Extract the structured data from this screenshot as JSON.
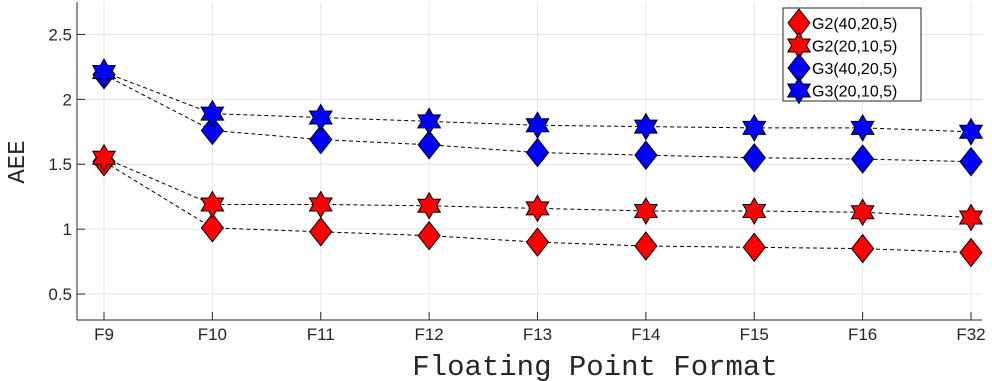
{
  "chart_data": {
    "type": "line",
    "xlabel": "Floating Point Format",
    "ylabel": "AEE",
    "categories": [
      "F9",
      "F10",
      "F11",
      "F12",
      "F13",
      "F14",
      "F15",
      "F16",
      "F32"
    ],
    "ylim": [
      0.3,
      2.75
    ],
    "yticks": [
      "0.5",
      "1",
      "1.5",
      "2",
      "2.5"
    ],
    "grid": true,
    "legend_position": "top-right",
    "series": [
      {
        "name": "G2(40,20,5)",
        "marker": "diamond",
        "color": "#ff0000",
        "values": [
          1.52,
          1.01,
          0.98,
          0.95,
          0.9,
          0.87,
          0.86,
          0.85,
          0.82
        ]
      },
      {
        "name": "G2(20,10,5)",
        "marker": "hexagram",
        "color": "#ff0000",
        "values": [
          1.55,
          1.19,
          1.19,
          1.18,
          1.16,
          1.14,
          1.14,
          1.13,
          1.09
        ]
      },
      {
        "name": "G3(40,20,5)",
        "marker": "diamond",
        "color": "#0000ff",
        "values": [
          2.19,
          1.76,
          1.69,
          1.65,
          1.59,
          1.57,
          1.55,
          1.54,
          1.52
        ]
      },
      {
        "name": "G3(20,10,5)",
        "marker": "hexagram",
        "color": "#0000ff",
        "values": [
          2.21,
          1.89,
          1.86,
          1.83,
          1.8,
          1.79,
          1.78,
          1.78,
          1.75
        ]
      }
    ]
  }
}
